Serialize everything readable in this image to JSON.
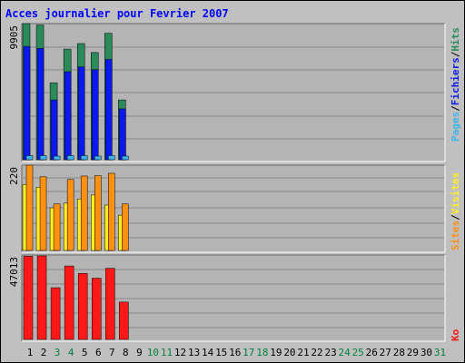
{
  "title": "Acces journalier pour Fevrier 2007",
  "colors": {
    "hits": "#2a8a5a",
    "files": "#0a1aee",
    "pages": "#3cb4ee",
    "visites": "#ffee22",
    "sites": "#ff9010",
    "ko": "#ff1818",
    "plot_bg": "#b4b4b4",
    "grid": "#888888",
    "weekend_label": "#008040",
    "weekday_label": "#000000"
  },
  "chart_data": [
    {
      "type": "bar",
      "panel": "hits-files-pages",
      "categories": [
        "1",
        "2",
        "3",
        "4",
        "5",
        "6",
        "7",
        "8"
      ],
      "ylabel_max": "9905",
      "ylim": [
        0,
        9905
      ],
      "legend": [
        "Pages",
        "Fichiers",
        "Hits"
      ],
      "series": [
        {
          "name": "Hits",
          "color_key": "hits",
          "values": [
            9905,
            9800,
            5600,
            8050,
            8450,
            7800,
            9200,
            4350
          ]
        },
        {
          "name": "Fichiers",
          "color_key": "files",
          "values": [
            8250,
            8100,
            4350,
            6400,
            6750,
            6550,
            7300,
            3700
          ]
        },
        {
          "name": "Pages",
          "color_key": "pages",
          "values": [
            300,
            300,
            200,
            300,
            300,
            250,
            300,
            200
          ]
        }
      ]
    },
    {
      "type": "bar",
      "panel": "visites-sites",
      "categories": [
        "1",
        "2",
        "3",
        "4",
        "5",
        "6",
        "7",
        "8"
      ],
      "ylabel_max": "220",
      "ylim": [
        0,
        220
      ],
      "legend": [
        "Sites",
        "Visites"
      ],
      "series": [
        {
          "name": "Sites",
          "color_key": "sites",
          "values": [
            220,
            190,
            120,
            183,
            192,
            193,
            199,
            120
          ]
        },
        {
          "name": "Visites",
          "color_key": "visites",
          "values": [
            170,
            163,
            110,
            122,
            133,
            143,
            117,
            91
          ]
        }
      ]
    },
    {
      "type": "bar",
      "panel": "ko",
      "categories": [
        "1",
        "2",
        "3",
        "4",
        "5",
        "6",
        "7",
        "8"
      ],
      "ylabel_max": "47013",
      "ylim": [
        0,
        47013
      ],
      "legend": [
        "Ko"
      ],
      "series": [
        {
          "name": "Ko",
          "color_key": "ko",
          "values": [
            46300,
            46500,
            28800,
            40900,
            36800,
            34100,
            39600,
            20800
          ]
        }
      ]
    }
  ],
  "x_axis": {
    "labels": [
      "1",
      "2",
      "3",
      "4",
      "5",
      "6",
      "7",
      "8",
      "9",
      "10",
      "11",
      "12",
      "13",
      "14",
      "15",
      "16",
      "17",
      "18",
      "19",
      "20",
      "21",
      "22",
      "23",
      "24",
      "25",
      "26",
      "27",
      "28",
      "29",
      "30",
      "31"
    ],
    "weekend_days": [
      "3",
      "4",
      "10",
      "11",
      "17",
      "18",
      "24",
      "25",
      "31"
    ]
  }
}
